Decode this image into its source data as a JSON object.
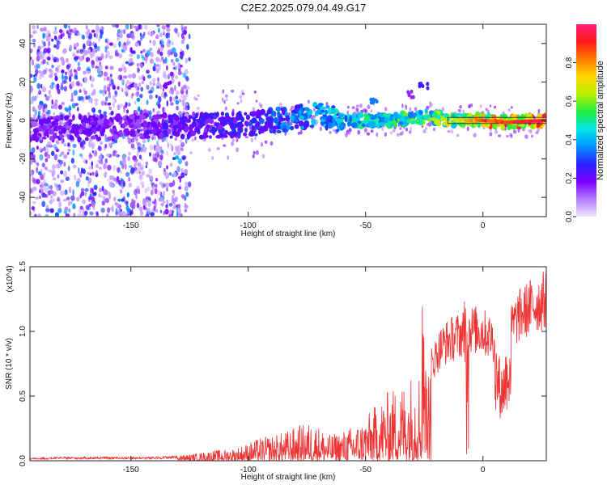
{
  "title": "C2E2.2025.079.04.49.G17",
  "chart_data": [
    {
      "type": "heatmap",
      "xlabel": "Height of straight line (km)",
      "ylabel": "Frequency (Hz)",
      "xlim": [
        -193,
        27
      ],
      "ylim": [
        -50,
        50
      ],
      "xticks": [
        -150,
        -100,
        -50,
        0
      ],
      "yticks": [
        -40,
        -20,
        0,
        20,
        40
      ],
      "colorbar": {
        "label": "Normalized spectral amplitude",
        "range": [
          0.0,
          1.0
        ],
        "ticks": [
          0.0,
          0.2,
          0.4,
          0.6,
          0.8
        ],
        "colors": [
          "#ede6ff",
          "#b37bff",
          "#7a00ff",
          "#2a22ff",
          "#0090ff",
          "#00e6e6",
          "#20ee40",
          "#b8ef00",
          "#ffd800",
          "#ff7a00",
          "#ff1a1a",
          "#ff1e78"
        ]
      },
      "signal_track": [
        {
          "x": -193,
          "y": -4,
          "amp": 0.2
        },
        {
          "x": -170,
          "y": -4,
          "amp": 0.22
        },
        {
          "x": -150,
          "y": -3,
          "amp": 0.2
        },
        {
          "x": -125,
          "y": -3,
          "amp": 0.25
        },
        {
          "x": -100,
          "y": -2,
          "amp": 0.3
        },
        {
          "x": -80,
          "y": 1,
          "amp": 0.4
        },
        {
          "x": -70,
          "y": 3,
          "amp": 0.42
        },
        {
          "x": -60,
          "y": 0,
          "amp": 0.5
        },
        {
          "x": -40,
          "y": 0,
          "amp": 0.55
        },
        {
          "x": -25,
          "y": 2,
          "amp": 0.6
        },
        {
          "x": -10,
          "y": 0,
          "amp": 0.7
        },
        {
          "x": 0,
          "y": 0,
          "amp": 0.85
        },
        {
          "x": 10,
          "y": -1,
          "amp": 0.9
        },
        {
          "x": 27,
          "y": 0,
          "amp": 0.95
        }
      ]
    },
    {
      "type": "line",
      "xlabel": "Height of straight line (km)",
      "ylabel": "SNR (10 * v/v)",
      "multiplier": "(x10^4)",
      "xlim": [
        -193,
        27
      ],
      "ylim": [
        0,
        1.5
      ],
      "xticks": [
        -150,
        -100,
        -50,
        0
      ],
      "yticks": [
        0.0,
        0.5,
        1.0,
        1.5
      ],
      "ytick_labels": [
        "0.0",
        "0.5",
        "1.0",
        "1.5"
      ],
      "series": [
        {
          "color": "#ee3333",
          "x": [
            -193,
            -180,
            -160,
            -140,
            -125,
            -115,
            -105,
            -95,
            -85,
            -78,
            -72,
            -65,
            -58,
            -52,
            -45,
            -40,
            -35,
            -30,
            -25,
            -22,
            -18,
            -15,
            -10,
            -5,
            0,
            5,
            8,
            12,
            15,
            20,
            27
          ],
          "y": [
            0.02,
            0.03,
            0.03,
            0.03,
            0.05,
            0.08,
            0.1,
            0.18,
            0.22,
            0.28,
            0.3,
            0.2,
            0.25,
            0.3,
            0.45,
            0.55,
            0.6,
            0.7,
            0.75,
            0.8,
            0.95,
            1.0,
            1.05,
            1.1,
            1.08,
            1.0,
            0.75,
            1.1,
            1.2,
            1.28,
            1.35
          ]
        }
      ]
    }
  ]
}
